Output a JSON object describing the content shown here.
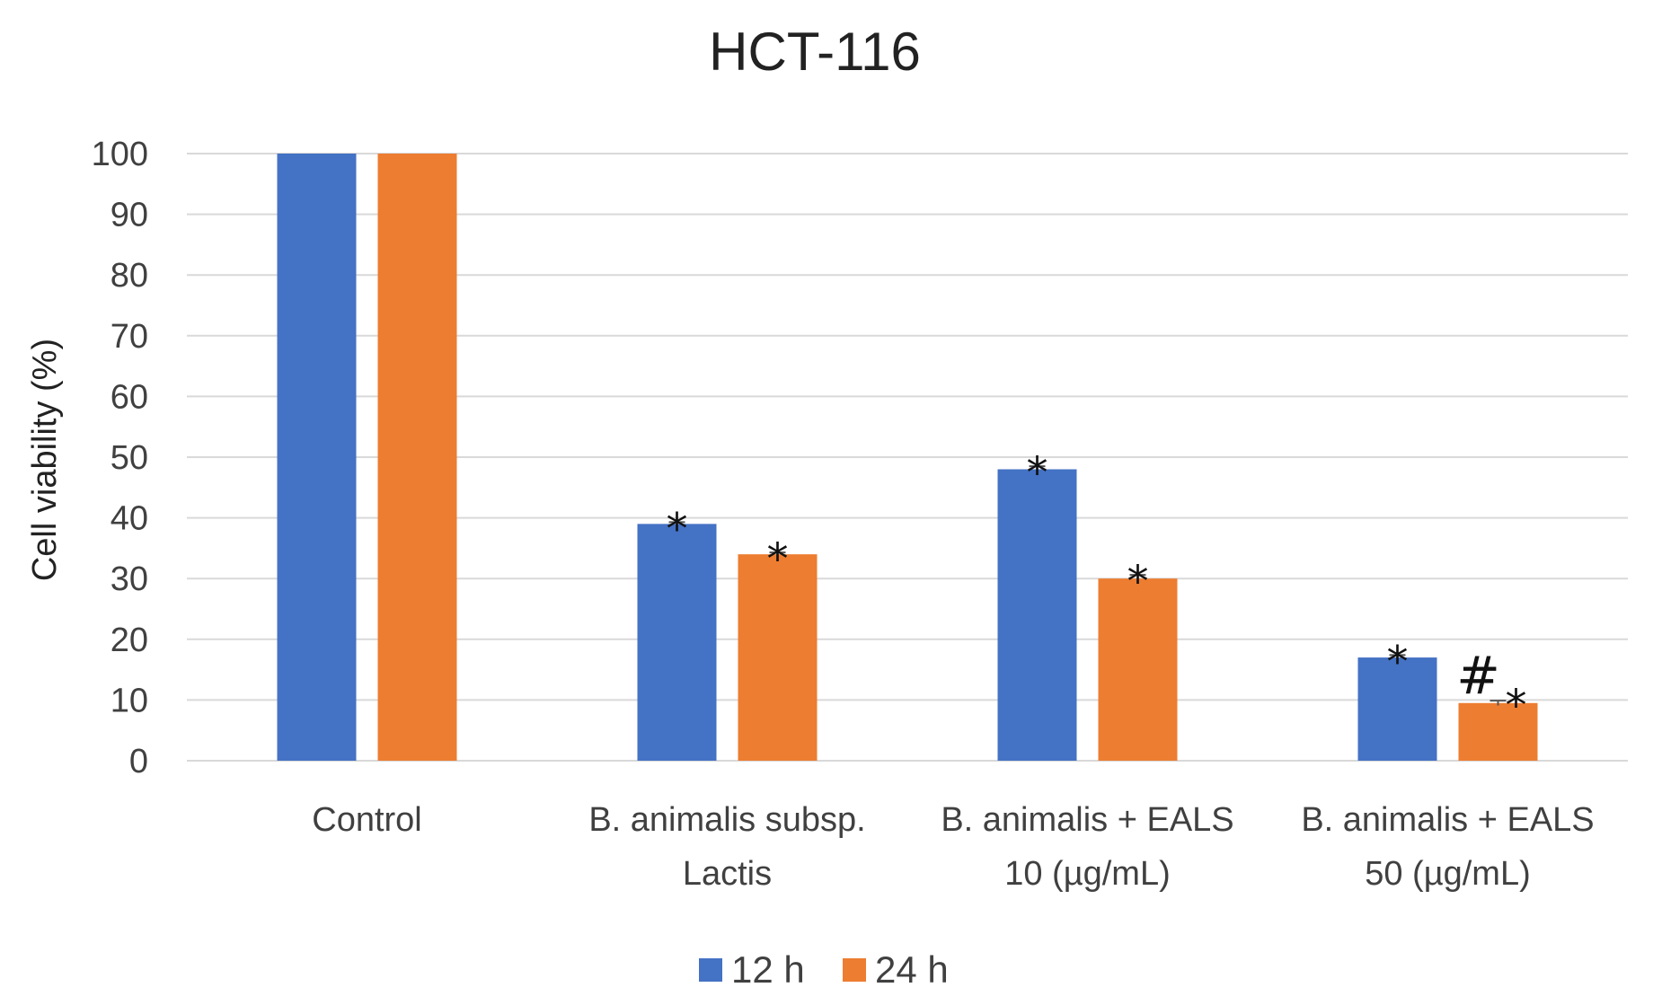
{
  "chart_data": {
    "type": "bar",
    "title": "HCT-116",
    "xlabel": "",
    "ylabel": "Cell viability (%)",
    "ylim": [
      0,
      100
    ],
    "yticks": [
      0,
      10,
      20,
      30,
      40,
      50,
      60,
      70,
      80,
      90,
      100
    ],
    "grid": true,
    "legend_position": "bottom",
    "categories": [
      [
        "Control"
      ],
      [
        "B. animalis subsp.",
        "Lactis"
      ],
      [
        "B. animalis + EALS",
        "10 (µg/mL)"
      ],
      [
        "B. animalis + EALS",
        "50 (µg/mL)"
      ]
    ],
    "series": [
      {
        "name": "12 h",
        "color": "#4472C4",
        "values": [
          100,
          39,
          48,
          17
        ],
        "errors": [
          0,
          0.3,
          0.5,
          0.4
        ]
      },
      {
        "name": "24 h",
        "color": "#ED7D31",
        "values": [
          100,
          34,
          30,
          9.5
        ],
        "errors": [
          0,
          0.3,
          0.6,
          0.4
        ]
      }
    ],
    "annotations": [
      {
        "series": 0,
        "category": 1,
        "text": "*"
      },
      {
        "series": 1,
        "category": 1,
        "text": "*"
      },
      {
        "series": 0,
        "category": 2,
        "text": "*"
      },
      {
        "series": 1,
        "category": 2,
        "text": "*"
      },
      {
        "series": 0,
        "category": 3,
        "text": "*"
      },
      {
        "series": 1,
        "category": 3,
        "text": "#*"
      }
    ]
  }
}
